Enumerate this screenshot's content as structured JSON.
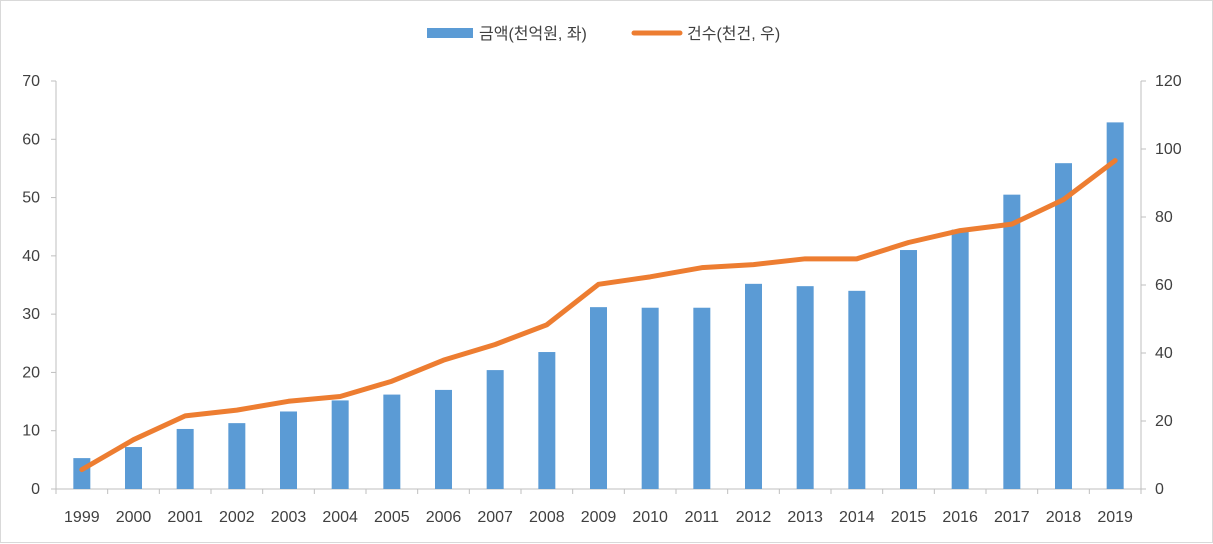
{
  "chart_data": {
    "type": "bar+line",
    "categories": [
      "1999",
      "2000",
      "2001",
      "2002",
      "2003",
      "2004",
      "2005",
      "2006",
      "2007",
      "2008",
      "2009",
      "2010",
      "2011",
      "2012",
      "2013",
      "2014",
      "2015",
      "2016",
      "2017",
      "2018",
      "2019"
    ],
    "series": [
      {
        "name": "금액(천억원, 좌)",
        "type": "bar",
        "axis": "left",
        "color": "#5b9bd5",
        "values": [
          5.3,
          7.2,
          10.3,
          11.3,
          13.3,
          15.2,
          16.2,
          17.0,
          20.4,
          23.5,
          31.2,
          31.1,
          31.1,
          35.2,
          34.8,
          34.0,
          41.0,
          44.5,
          50.5,
          55.9,
          62.9
        ]
      },
      {
        "name": "건수(천건, 우)",
        "type": "line",
        "axis": "right",
        "color": "#ed7d31",
        "values": [
          5.7,
          14.5,
          21.5,
          23.2,
          25.8,
          27.2,
          31.7,
          37.9,
          42.5,
          48.3,
          60.2,
          62.4,
          65.1,
          66.0,
          67.7,
          67.7,
          72.5,
          76.0,
          77.9,
          85.1,
          96.6
        ]
      }
    ],
    "y_left": {
      "min": 0,
      "max": 70,
      "ticks": [
        0,
        10,
        20,
        30,
        40,
        50,
        60,
        70
      ]
    },
    "y_right": {
      "min": 0,
      "max": 120,
      "ticks": [
        0,
        20,
        40,
        60,
        80,
        100,
        120
      ]
    },
    "legend_position": "top-center",
    "grid": false
  }
}
